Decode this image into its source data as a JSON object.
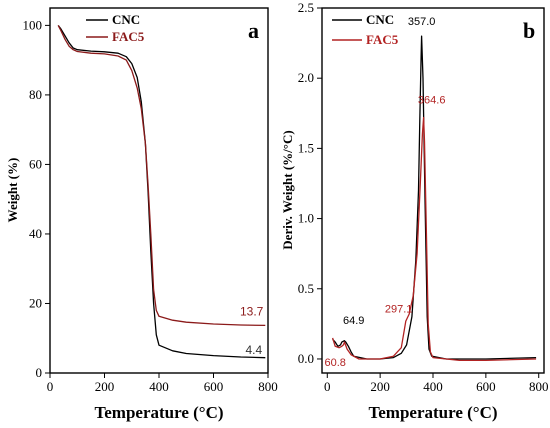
{
  "chart_data": [
    {
      "type": "line",
      "panel_label": "a",
      "xlabel": "Temperature (°C)",
      "ylabel": "Weight (%)",
      "xlim": [
        0,
        800
      ],
      "ylim": [
        0,
        105
      ],
      "xticks": [
        0,
        200,
        400,
        600,
        800
      ],
      "yticks": [
        0,
        20,
        40,
        60,
        80,
        100
      ],
      "legend_position": "top-left",
      "series": [
        {
          "name": "CNC",
          "color": "#000000",
          "points": [
            [
              30,
              100
            ],
            [
              40,
              99
            ],
            [
              55,
              97
            ],
            [
              70,
              95
            ],
            [
              85,
              93.5
            ],
            [
              100,
              93
            ],
            [
              150,
              92.6
            ],
            [
              200,
              92.4
            ],
            [
              250,
              92
            ],
            [
              280,
              91
            ],
            [
              300,
              89
            ],
            [
              320,
              85
            ],
            [
              335,
              78
            ],
            [
              350,
              66
            ],
            [
              360,
              52
            ],
            [
              370,
              35
            ],
            [
              380,
              20
            ],
            [
              390,
              11
            ],
            [
              400,
              8
            ],
            [
              450,
              6.4
            ],
            [
              500,
              5.6
            ],
            [
              600,
              5
            ],
            [
              700,
              4.6
            ],
            [
              790,
              4.4
            ]
          ]
        },
        {
          "name": "FAC5",
          "color": "#8b1a1a",
          "points": [
            [
              30,
              100
            ],
            [
              40,
              98.5
            ],
            [
              55,
              96
            ],
            [
              70,
              94
            ],
            [
              85,
              93
            ],
            [
              100,
              92.5
            ],
            [
              150,
              92
            ],
            [
              200,
              91.8
            ],
            [
              250,
              91.2
            ],
            [
              280,
              90
            ],
            [
              300,
              87
            ],
            [
              320,
              82
            ],
            [
              335,
              76
            ],
            [
              350,
              66
            ],
            [
              360,
              54
            ],
            [
              370,
              40
            ],
            [
              380,
              24
            ],
            [
              390,
              18
            ],
            [
              400,
              16.3
            ],
            [
              450,
              15.2
            ],
            [
              500,
              14.6
            ],
            [
              600,
              14.1
            ],
            [
              700,
              13.8
            ],
            [
              790,
              13.7
            ]
          ]
        }
      ],
      "annotations": [
        {
          "text": "13.7",
          "x": 740,
          "y": 16.5,
          "color": "#8b1a1a"
        },
        {
          "text": "4.4",
          "x": 748,
          "y": 5.5,
          "color": "#333333"
        }
      ]
    },
    {
      "type": "line",
      "panel_label": "b",
      "xlabel": "Temperature (°C)",
      "ylabel": "Deriv. Weight (%/°C)",
      "xlim": [
        -20,
        820
      ],
      "ylim": [
        -0.1,
        2.5
      ],
      "xticks": [
        0,
        200,
        400,
        600,
        800
      ],
      "yticks": [
        0.0,
        0.5,
        1.0,
        1.5,
        2.0,
        2.5
      ],
      "ytick_labels": [
        "0.0",
        "0.5",
        "1.0",
        "1.5",
        "2.0",
        "2.5"
      ],
      "legend_position": "top-left",
      "series": [
        {
          "name": "CNC",
          "color": "#000000",
          "points": [
            [
              20,
              0.14
            ],
            [
              30,
              0.12
            ],
            [
              40,
              0.09
            ],
            [
              50,
              0.1
            ],
            [
              55,
              0.12
            ],
            [
              64.9,
              0.13
            ],
            [
              70,
              0.12
            ],
            [
              80,
              0.09
            ],
            [
              90,
              0.05
            ],
            [
              100,
              0.02
            ],
            [
              150,
              0.0
            ],
            [
              200,
              0.0
            ],
            [
              250,
              0.01
            ],
            [
              280,
              0.04
            ],
            [
              300,
              0.1
            ],
            [
              320,
              0.3
            ],
            [
              335,
              0.7
            ],
            [
              345,
              1.2
            ],
            [
              350,
              1.7
            ],
            [
              355,
              2.15
            ],
            [
              357,
              2.3
            ],
            [
              362,
              2.0
            ],
            [
              370,
              1.1
            ],
            [
              378,
              0.3
            ],
            [
              385,
              0.07
            ],
            [
              395,
              0.02
            ],
            [
              450,
              0.0
            ],
            [
              600,
              0.0
            ],
            [
              790,
              0.01
            ]
          ]
        },
        {
          "name": "FAC5",
          "color": "#b22222",
          "points": [
            [
              20,
              0.15
            ],
            [
              30,
              0.09
            ],
            [
              45,
              0.08
            ],
            [
              55,
              0.09
            ],
            [
              60.8,
              0.1
            ],
            [
              65,
              0.12
            ],
            [
              75,
              0.07
            ],
            [
              90,
              0.03
            ],
            [
              120,
              0.0
            ],
            [
              200,
              0.0
            ],
            [
              250,
              0.02
            ],
            [
              280,
              0.08
            ],
            [
              297.1,
              0.27
            ],
            [
              310,
              0.32
            ],
            [
              325,
              0.45
            ],
            [
              340,
              0.75
            ],
            [
              352,
              1.25
            ],
            [
              360,
              1.6
            ],
            [
              364.6,
              1.72
            ],
            [
              368,
              1.55
            ],
            [
              375,
              0.9
            ],
            [
              382,
              0.25
            ],
            [
              390,
              0.05
            ],
            [
              400,
              0.01
            ],
            [
              500,
              -0.01
            ],
            [
              600,
              -0.01
            ],
            [
              790,
              0.0
            ]
          ]
        }
      ],
      "annotations": [
        {
          "text": "357.0",
          "x": 357,
          "y": 2.38,
          "color": "#000000"
        },
        {
          "text": "364.6",
          "x": 395,
          "y": 1.82,
          "color": "#b22222"
        },
        {
          "text": "297.1",
          "x": 270,
          "y": 0.33,
          "color": "#b22222"
        },
        {
          "text": "64.9",
          "x": 100,
          "y": 0.25,
          "color": "#000000"
        },
        {
          "text": "60.8",
          "x": 30,
          "y": -0.05,
          "color": "#b22222"
        }
      ]
    }
  ]
}
